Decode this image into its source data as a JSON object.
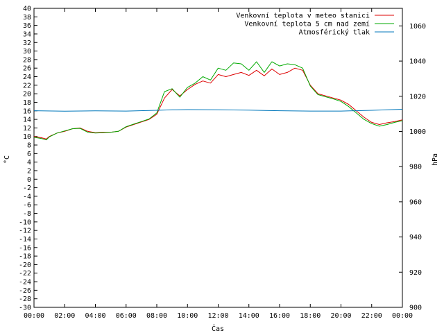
{
  "chart_data": {
    "type": "line",
    "xlabel": "Čas",
    "ylabel": "°C",
    "y2label": "hPa",
    "xlim": [
      0,
      24
    ],
    "ylim": [
      -30,
      40
    ],
    "y2lim": [
      900,
      1070
    ],
    "x_ticks": [
      "00:00",
      "02:00",
      "04:00",
      "06:00",
      "08:00",
      "10:00",
      "12:00",
      "14:00",
      "16:00",
      "18:00",
      "20:00",
      "22:00",
      "00:00"
    ],
    "y_ticks": [
      40,
      38,
      36,
      34,
      32,
      30,
      28,
      26,
      24,
      22,
      20,
      18,
      16,
      14,
      12,
      10,
      8,
      6,
      4,
      2,
      0,
      -2,
      -4,
      -6,
      -8,
      -10,
      -12,
      -14,
      -16,
      -18,
      -20,
      -22,
      -24,
      -26,
      -28,
      -30
    ],
    "y2_ticks": [
      1060,
      1040,
      1020,
      1000,
      980,
      960,
      940,
      920,
      900
    ],
    "legend_position": "top-right",
    "grid": false,
    "series": [
      {
        "name": "Venkovní teplota v meteo stanici",
        "axis": "left",
        "color": "#dd0000",
        "x": [
          0,
          0.5,
          0.8,
          1,
          1.5,
          2,
          2.5,
          3,
          3.5,
          4,
          4.5,
          5,
          5.5,
          6,
          6.5,
          7,
          7.5,
          8,
          8.5,
          9,
          9.5,
          10,
          10.5,
          11,
          11.5,
          12,
          12.5,
          13,
          13.5,
          14,
          14.5,
          15,
          15.5,
          16,
          16.5,
          17,
          17.5,
          18,
          18.5,
          19,
          19.5,
          20,
          20.5,
          21,
          21.5,
          22,
          22.5,
          23,
          23.5,
          24
        ],
        "y": [
          10,
          9.7,
          9.4,
          10,
          10.8,
          11.2,
          11.8,
          12,
          11.2,
          10.9,
          11,
          11,
          11.2,
          12.2,
          12.8,
          13.4,
          14,
          15.2,
          19,
          21,
          19.5,
          21,
          22.2,
          23,
          22.5,
          24.5,
          24,
          24.5,
          25,
          24.3,
          25.5,
          24.2,
          25.8,
          24.5,
          25,
          26,
          25.5,
          22,
          20,
          19.5,
          19,
          18.5,
          17.5,
          16,
          14.5,
          13.3,
          12.8,
          13.2,
          13.5,
          13.9
        ]
      },
      {
        "name": "Venkovní teplota 5 cm nad zemí",
        "axis": "left",
        "color": "#00aa00",
        "x": [
          0,
          0.5,
          0.8,
          1,
          1.5,
          2,
          2.5,
          3,
          3.5,
          4,
          4.5,
          5,
          5.5,
          6,
          6.5,
          7,
          7.5,
          8,
          8.5,
          9,
          9.5,
          10,
          10.5,
          11,
          11.5,
          12,
          12.5,
          13,
          13.5,
          14,
          14.5,
          15,
          15.5,
          16,
          16.5,
          17,
          17.5,
          18,
          18.5,
          19,
          19.5,
          20,
          20.5,
          21,
          21.5,
          22,
          22.5,
          23,
          23.5,
          24
        ],
        "y": [
          9.8,
          9.5,
          9.2,
          9.9,
          10.8,
          11.3,
          11.8,
          11.9,
          11,
          10.8,
          10.9,
          11,
          11.2,
          12.3,
          12.9,
          13.5,
          14.1,
          15.5,
          20.5,
          21.2,
          19.2,
          21.5,
          22.5,
          24,
          23.2,
          26,
          25.5,
          27.2,
          27,
          25.5,
          27.5,
          25,
          27.5,
          26.5,
          27,
          26.8,
          26,
          21.8,
          19.8,
          19.3,
          18.8,
          18.2,
          17,
          15.5,
          14,
          13,
          12.4,
          12.8,
          13.3,
          13.7
        ]
      },
      {
        "name": "Atmosférický tlak",
        "axis": "right",
        "color": "#0077bb",
        "x": [
          0,
          2,
          4,
          6,
          8,
          9,
          10,
          12,
          14,
          16,
          18,
          20,
          22,
          24
        ],
        "y": [
          1011.8,
          1011.5,
          1011.7,
          1011.6,
          1012,
          1012.3,
          1012.4,
          1012.3,
          1012.1,
          1011.8,
          1011.6,
          1011.6,
          1012,
          1012.6
        ]
      }
    ]
  }
}
